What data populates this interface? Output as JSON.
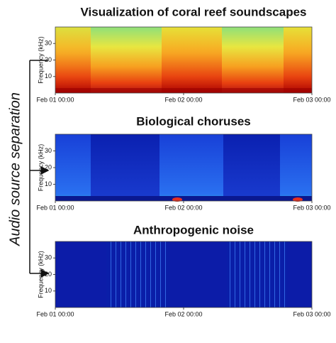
{
  "side_label": "Audio source separation",
  "panels": [
    {
      "title": "Visualization of coral reef soundscapes",
      "ylabel": "Frequency (kHz)",
      "ylim": [
        0,
        40
      ],
      "yticks": [
        10,
        20,
        30
      ],
      "xticks": [
        "Feb 01 00:00",
        "Feb 02 00:00",
        "Feb 03 00:00"
      ]
    },
    {
      "title": "Biological choruses",
      "ylabel": "Frequency (kHz)",
      "ylim": [
        0,
        40
      ],
      "yticks": [
        10,
        20,
        30
      ],
      "xticks": [
        "Feb 01 00:00",
        "Feb 02 00:00",
        "Feb 03 00:00"
      ]
    },
    {
      "title": "Anthropogenic noise",
      "ylabel": "Frequency (kHz)",
      "ylim": [
        0,
        40
      ],
      "yticks": [
        10,
        20,
        30
      ],
      "xticks": [
        "Feb 01 00:00",
        "Feb 02 00:00",
        "Feb 03 00:00"
      ]
    }
  ]
}
